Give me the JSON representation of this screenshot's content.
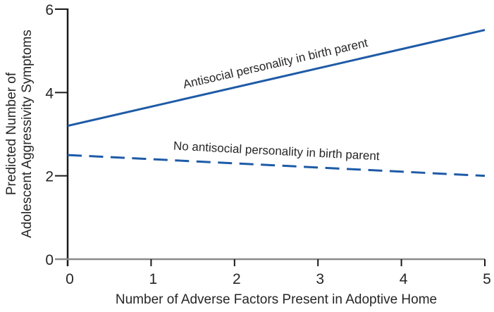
{
  "figure": {
    "background": "#ffffff"
  },
  "chart_data": {
    "type": "line",
    "title": "",
    "xlabel": "Number of Adverse Factors Present in Adoptive Home",
    "ylabel_lines": [
      "Predicted Number of",
      "Adolescent Aggressivity Symptoms"
    ],
    "xlim": [
      0,
      5
    ],
    "ylim": [
      0,
      6
    ],
    "x_ticks": [
      0,
      1,
      2,
      3,
      4,
      5
    ],
    "y_ticks": [
      0,
      2,
      4,
      6
    ],
    "grid": false,
    "legend_position": "inline-labels",
    "series": [
      {
        "name": "Antisocial personality in birth parent",
        "x": [
          0,
          5
        ],
        "values": [
          3.2,
          5.5
        ],
        "line_style": "solid",
        "color": "#1e5ba7"
      },
      {
        "name": "No antisocial personality in birth parent",
        "x": [
          0,
          5
        ],
        "values": [
          2.5,
          2.0
        ],
        "line_style": "dashed",
        "color": "#1e5ba7"
      }
    ],
    "colors": {
      "line_blue": "#1e5ba7",
      "axis_y": "#1a1a1a",
      "axis_x": "#8a8a8a",
      "text": "#262626"
    }
  }
}
